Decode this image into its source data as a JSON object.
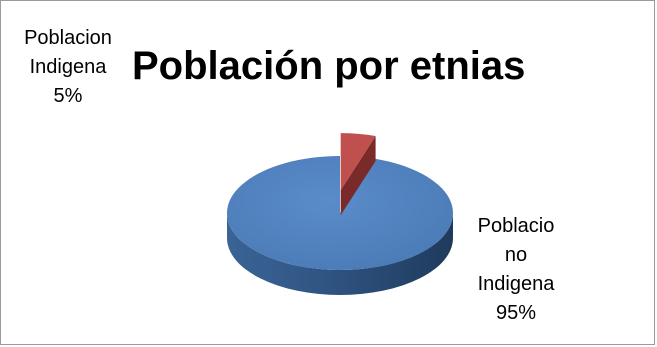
{
  "chart_data": {
    "type": "pie",
    "title": "Población por etnias",
    "categories": [
      "Poblacion Indigena",
      "Poblacio no Indigena"
    ],
    "values": [
      5,
      95
    ],
    "unit": "%",
    "style": "3d-exploded",
    "legend": "none",
    "colors": [
      "#c0504d",
      "#4f81bd"
    ],
    "side_colors": [
      "#7e2e2c",
      "#2c4d75"
    ],
    "labels": [
      {
        "lines": [
          "Poblacion",
          "Indigena",
          "5%"
        ]
      },
      {
        "lines": [
          "Poblacio",
          "no",
          "Indigena",
          "95%"
        ]
      }
    ]
  }
}
